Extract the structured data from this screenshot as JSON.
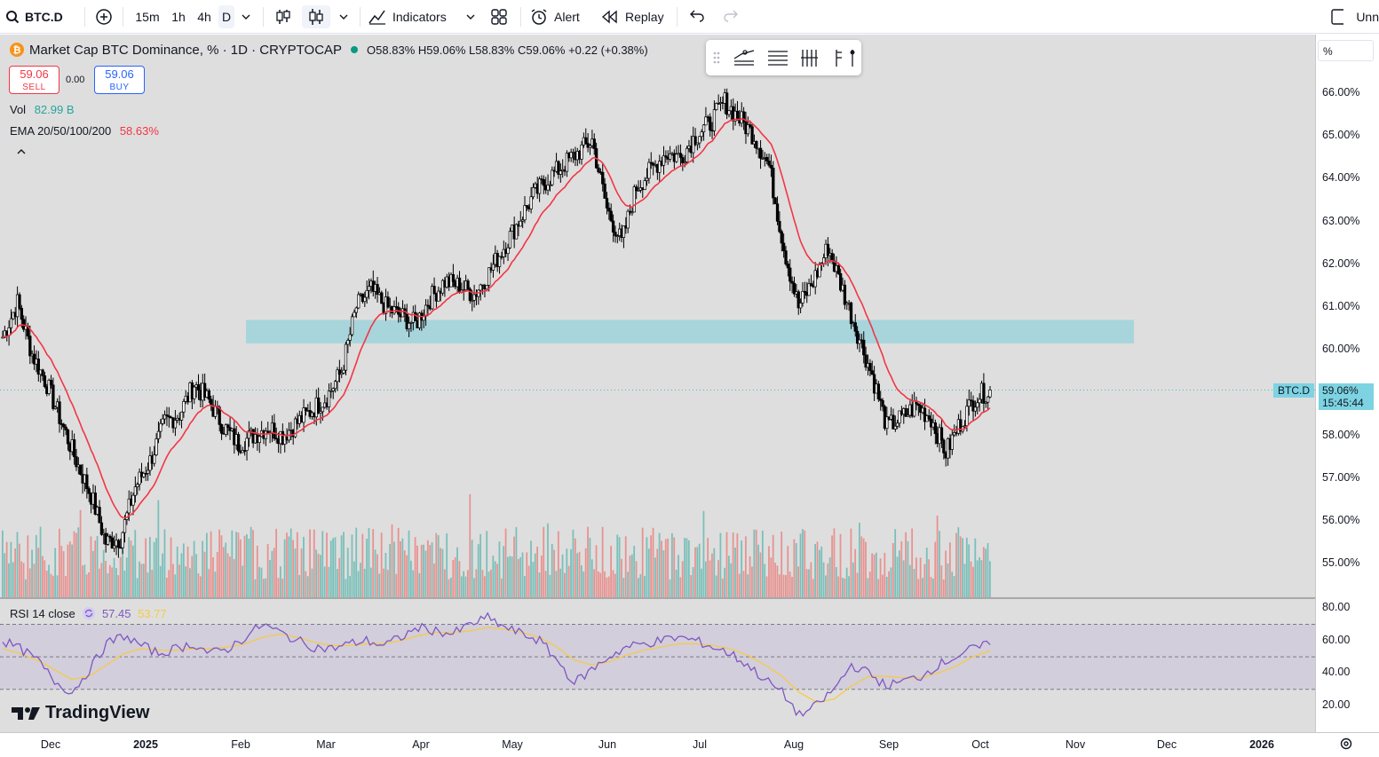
{
  "toolbar": {
    "symbol": "BTC.D",
    "intervals": [
      "15m",
      "1h",
      "4h",
      "D"
    ],
    "active_interval": "D",
    "indicators_label": "Indicators",
    "alert_label": "Alert",
    "replay_label": "Replay",
    "unnamed_label": "Unn"
  },
  "legend": {
    "title": "Market Cap BTC Dominance, % · 1D · CRYPTOCAP",
    "o_label": "O",
    "o_value": "58.83%",
    "h_label": "H",
    "h_value": "59.06%",
    "l_label": "L",
    "l_value": "58.83%",
    "c_label": "C",
    "c_value": "59.06%",
    "change": "+0.22 (+0.38%)",
    "sell_price": "59.06",
    "sell_label": "SELL",
    "spread": "0.00",
    "buy_price": "59.06",
    "buy_label": "BUY",
    "vol_label": "Vol",
    "vol_value": "82.99 B",
    "ema_label": "EMA 20/50/100/200",
    "ema_value": "58.63%",
    "rsi_label": "RSI 14 close",
    "rsi_value": "57.45",
    "rsi_ma_value": "53.77"
  },
  "price_axis": {
    "unit": "%",
    "labels": [
      "66.00%",
      "65.00%",
      "64.00%",
      "63.00%",
      "62.00%",
      "61.00%",
      "60.00%",
      "58.00%",
      "57.00%",
      "56.00%",
      "55.00%"
    ],
    "last_symbol": "BTC.D",
    "last_price": "59.06%",
    "countdown": "15:45:44"
  },
  "rsi_axis": {
    "labels": [
      "80.00",
      "60.00",
      "40.00",
      "20.00"
    ]
  },
  "time_axis": {
    "labels": [
      "Dec",
      "2025",
      "Feb",
      "Mar",
      "Apr",
      "May",
      "Jun",
      "Jul",
      "Aug",
      "Sep",
      "Oct",
      "Nov",
      "Dec",
      "2026"
    ]
  },
  "brand": "TradingView",
  "colors": {
    "bg": "#dedede",
    "up": "#26a69a",
    "down": "#ef5350",
    "ema": "#f23645",
    "rsi": "#7e57c2",
    "rsi_ma": "#f7c948",
    "zone": "#9fd3da",
    "accent": "#2962ff"
  },
  "chart_data": {
    "type": "candlestick",
    "x_axis": "date (Dec 2024 – Oct 2025, daily)",
    "ylim": [
      54.3,
      66.7
    ],
    "zone": {
      "y_from": 60.15,
      "y_to": 60.7
    },
    "weekly_close_path": [
      60.3,
      61.1,
      59.9,
      59.2,
      58.3,
      57.4,
      56.6,
      55.5,
      55.6,
      56.8,
      57.4,
      58.3,
      58.5,
      59.2,
      58.8,
      58.2,
      57.8,
      58.0,
      58.2,
      58.0,
      58.3,
      58.6,
      58.9,
      59.5,
      61.0,
      61.4,
      61.0,
      60.8,
      60.6,
      61.2,
      61.6,
      61.5,
      61.3,
      61.8,
      62.4,
      63.0,
      63.6,
      64.0,
      64.3,
      64.6,
      64.9,
      63.3,
      62.5,
      63.8,
      64.2,
      64.6,
      64.5,
      65.0,
      65.3,
      65.8,
      65.4,
      65.0,
      64.3,
      62.4,
      61.0,
      61.6,
      62.4,
      61.4,
      60.4,
      59.4,
      58.2,
      58.4,
      58.7,
      58.4,
      57.6,
      58.3,
      58.9,
      59.06
    ],
    "rsi_path": [
      60,
      55,
      48,
      35,
      28,
      42,
      58,
      63,
      57,
      52,
      55,
      58,
      52,
      55,
      62,
      70,
      65,
      60,
      56,
      55,
      58,
      60,
      57,
      62,
      68,
      66,
      64,
      70,
      74,
      68,
      64,
      60,
      48,
      34,
      42,
      50,
      56,
      58,
      60,
      62,
      60,
      56,
      52,
      45,
      36,
      28,
      14,
      20,
      30,
      45,
      40,
      32,
      35,
      38,
      45,
      50,
      55,
      57.45
    ],
    "rsi_ma_path": [
      55,
      52,
      48,
      42,
      36,
      38,
      45,
      52,
      55,
      54,
      54,
      55,
      55,
      56,
      58,
      62,
      64,
      62,
      59,
      57,
      57,
      58,
      58,
      60,
      63,
      65,
      65,
      66,
      68,
      67,
      65,
      62,
      56,
      48,
      45,
      47,
      51,
      54,
      56,
      58,
      58,
      57,
      55,
      51,
      45,
      38,
      28,
      22,
      24,
      32,
      38,
      38,
      37,
      37,
      40,
      44,
      50,
      53.77
    ]
  }
}
